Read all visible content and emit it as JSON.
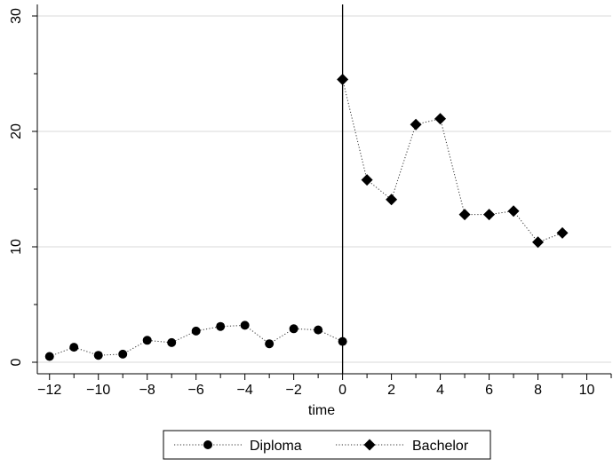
{
  "chart_data": {
    "type": "line",
    "title": "",
    "xlabel": "time",
    "ylabel": "",
    "xlim": [
      -12.5,
      11
    ],
    "ylim": [
      -1,
      31
    ],
    "x_ticks": [
      -12,
      -10,
      -8,
      -6,
      -4,
      -2,
      0,
      2,
      4,
      6,
      8,
      10
    ],
    "x_tick_labels": [
      "−12",
      "−10",
      "−8",
      "−6",
      "−4",
      "−2",
      "0",
      "2",
      "4",
      "6",
      "8",
      "10"
    ],
    "y_ticks": [
      0,
      10,
      20,
      30
    ],
    "y_tick_labels": [
      "0",
      "10",
      "20",
      "30"
    ],
    "grid": true,
    "legend_position": "bottom",
    "reference_line_x": 0,
    "series": [
      {
        "name": "Diploma",
        "marker": "circle",
        "points": [
          {
            "x": -12,
            "y": 0.5
          },
          {
            "x": -11,
            "y": 1.3
          },
          {
            "x": -10,
            "y": 0.6
          },
          {
            "x": -9,
            "y": 0.7
          },
          {
            "x": -8,
            "y": 1.9
          },
          {
            "x": -7,
            "y": 1.7
          },
          {
            "x": -6,
            "y": 2.7
          },
          {
            "x": -5,
            "y": 3.1
          },
          {
            "x": -4,
            "y": 3.2
          },
          {
            "x": -3,
            "y": 1.6
          },
          {
            "x": -2,
            "y": 2.9
          },
          {
            "x": -1,
            "y": 2.8
          },
          {
            "x": 0,
            "y": 1.8
          }
        ]
      },
      {
        "name": "Bachelor",
        "marker": "diamond",
        "points": [
          {
            "x": 0,
            "y": 24.5
          },
          {
            "x": 1,
            "y": 15.8
          },
          {
            "x": 2,
            "y": 14.1
          },
          {
            "x": 3,
            "y": 20.6
          },
          {
            "x": 4,
            "y": 21.1
          },
          {
            "x": 5,
            "y": 12.8
          },
          {
            "x": 6,
            "y": 12.8
          },
          {
            "x": 7,
            "y": 13.1
          },
          {
            "x": 8,
            "y": 10.4
          },
          {
            "x": 9,
            "y": 11.2
          }
        ]
      }
    ]
  }
}
